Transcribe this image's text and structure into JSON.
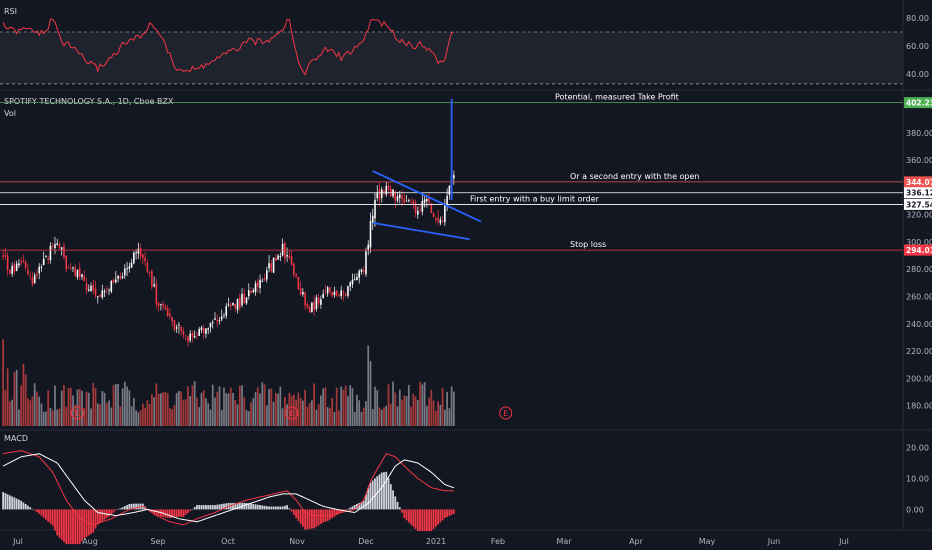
{
  "chart_data": {
    "type": "candlestick",
    "title": "SPOTIFY TECHNOLOGY S.A., 1D, Cboe BZX",
    "volume_label": "Vol",
    "months": [
      "Jul",
      "Aug",
      "Sep",
      "Oct",
      "Nov",
      "Dec",
      "2021",
      "Feb",
      "Mar",
      "Apr",
      "May",
      "Jun",
      "Jul"
    ],
    "price_axis": {
      "ylim": [
        165,
        410
      ],
      "ticks": [
        180,
        200,
        220,
        240,
        260,
        280,
        300,
        320,
        340,
        360,
        380
      ]
    },
    "price_tick_labels": [
      "180.00",
      "200.00",
      "220.00",
      "240.00",
      "260.00",
      "280.00",
      "300.00",
      "320.00",
      "340.00",
      "360.00",
      "380.00"
    ],
    "anchors": [
      [
        0,
        290
      ],
      [
        3,
        278
      ],
      [
        8,
        285
      ],
      [
        13,
        270
      ],
      [
        17,
        282
      ],
      [
        20,
        290
      ],
      [
        24,
        300
      ],
      [
        28,
        285
      ],
      [
        32,
        278
      ],
      [
        36,
        272
      ],
      [
        40,
        263
      ],
      [
        44,
        262
      ],
      [
        48,
        268
      ],
      [
        52,
        275
      ],
      [
        56,
        284
      ],
      [
        60,
        292
      ],
      [
        64,
        280
      ],
      [
        68,
        258
      ],
      [
        72,
        248
      ],
      [
        76,
        238
      ],
      [
        80,
        232
      ],
      [
        84,
        228
      ],
      [
        88,
        235
      ],
      [
        92,
        240
      ],
      [
        96,
        246
      ],
      [
        100,
        251
      ],
      [
        104,
        255
      ],
      [
        108,
        261
      ],
      [
        112,
        267
      ],
      [
        116,
        277
      ],
      [
        120,
        285
      ],
      [
        124,
        295
      ],
      [
        128,
        283
      ],
      [
        132,
        263
      ],
      [
        136,
        250
      ],
      [
        140,
        258
      ],
      [
        144,
        265
      ],
      [
        148,
        260
      ],
      [
        152,
        264
      ],
      [
        156,
        272
      ],
      [
        160,
        281
      ],
      [
        162,
        298
      ],
      [
        163,
        318
      ],
      [
        165,
        328
      ],
      [
        168,
        338
      ],
      [
        172,
        336
      ],
      [
        176,
        332
      ],
      [
        180,
        328
      ],
      [
        184,
        325
      ],
      [
        188,
        329
      ],
      [
        192,
        318
      ],
      [
        194,
        312
      ],
      [
        196,
        325
      ],
      [
        198,
        338
      ],
      [
        199,
        345
      ]
    ],
    "levels": [
      {
        "name": "take-profit",
        "value": 402.23,
        "label": "402.23",
        "text": "Potential, measured Take Profit",
        "color": "#4caf50"
      },
      {
        "name": "second-entry",
        "value": 344.07,
        "label": "344.07",
        "text": "Or a second entry with the open",
        "color": "#ef5350"
      },
      {
        "name": "first-entry",
        "value": 336.12,
        "label": "336.12",
        "text": "",
        "color": "#ffffff"
      },
      {
        "name": "first-entry-low",
        "value": 327.54,
        "label": "327.54",
        "text": "First entry with a buy limit order",
        "color": "#ffffff"
      },
      {
        "name": "stop-loss",
        "value": 294.01,
        "label": "294.01",
        "text": "Stop loss",
        "color": "#f23645"
      }
    ],
    "pattern_lines": [
      {
        "name": "flag-upper",
        "x": [
          164,
          212
        ],
        "y": [
          352,
          315
        ]
      },
      {
        "name": "flag-lower",
        "x": [
          164,
          207
        ],
        "y": [
          314,
          302
        ]
      },
      {
        "name": "flag-pole",
        "x": [
          199,
          199
        ],
        "y": [
          331,
          405
        ]
      }
    ],
    "earnings_markers": [
      {
        "label": "E",
        "x": 33
      },
      {
        "label": "E",
        "x": 128
      },
      {
        "label": "E",
        "x": 223
      }
    ],
    "rsi": {
      "label": "RSI",
      "ylim": [
        30,
        90
      ],
      "ticks": [
        40,
        60,
        80
      ],
      "tick_labels": [
        "40.00",
        "60.00",
        "80.00"
      ],
      "band": [
        33,
        70
      ],
      "anchors": [
        [
          0,
          75
        ],
        [
          5,
          70
        ],
        [
          12,
          72
        ],
        [
          18,
          68
        ],
        [
          22,
          80
        ],
        [
          26,
          63
        ],
        [
          32,
          58
        ],
        [
          38,
          48
        ],
        [
          42,
          44
        ],
        [
          48,
          52
        ],
        [
          54,
          62
        ],
        [
          60,
          66
        ],
        [
          66,
          76
        ],
        [
          70,
          68
        ],
        [
          76,
          45
        ],
        [
          82,
          42
        ],
        [
          88,
          45
        ],
        [
          94,
          50
        ],
        [
          100,
          55
        ],
        [
          106,
          60
        ],
        [
          110,
          64
        ],
        [
          116,
          62
        ],
        [
          120,
          68
        ],
        [
          124,
          73
        ],
        [
          127,
          80
        ],
        [
          130,
          55
        ],
        [
          132,
          44
        ],
        [
          134,
          42
        ],
        [
          138,
          50
        ],
        [
          144,
          58
        ],
        [
          150,
          52
        ],
        [
          156,
          58
        ],
        [
          160,
          64
        ],
        [
          163,
          78
        ],
        [
          166,
          79
        ],
        [
          170,
          74
        ],
        [
          174,
          67
        ],
        [
          178,
          63
        ],
        [
          182,
          60
        ],
        [
          186,
          62
        ],
        [
          190,
          55
        ],
        [
          194,
          48
        ],
        [
          196,
          50
        ],
        [
          198,
          64
        ],
        [
          199,
          71
        ],
        [
          200,
          68
        ]
      ]
    },
    "macd": {
      "label": "MACD",
      "ylim": [
        -6,
        25
      ],
      "ticks": [
        0,
        10,
        20
      ],
      "tick_labels": [
        "0.00",
        "10.00",
        "20.00"
      ],
      "macd_anchors": [
        [
          0,
          18
        ],
        [
          8,
          19
        ],
        [
          16,
          17
        ],
        [
          22,
          12
        ],
        [
          28,
          3
        ],
        [
          34,
          -3
        ],
        [
          40,
          -5
        ],
        [
          48,
          -3
        ],
        [
          56,
          0
        ],
        [
          62,
          1
        ],
        [
          68,
          -2
        ],
        [
          74,
          -4
        ],
        [
          80,
          -5
        ],
        [
          86,
          -3
        ],
        [
          94,
          -1
        ],
        [
          100,
          1
        ],
        [
          108,
          3
        ],
        [
          114,
          4
        ],
        [
          120,
          5
        ],
        [
          126,
          6
        ],
        [
          130,
          3
        ],
        [
          134,
          -1
        ],
        [
          138,
          -2
        ],
        [
          144,
          -2
        ],
        [
          150,
          -1
        ],
        [
          156,
          0
        ],
        [
          160,
          3
        ],
        [
          163,
          9
        ],
        [
          166,
          13
        ],
        [
          170,
          18
        ],
        [
          174,
          17
        ],
        [
          178,
          14
        ],
        [
          184,
          10
        ],
        [
          190,
          7
        ],
        [
          196,
          6
        ],
        [
          200,
          6
        ]
      ],
      "signal_anchors": [
        [
          0,
          14
        ],
        [
          8,
          17
        ],
        [
          16,
          18
        ],
        [
          24,
          15
        ],
        [
          30,
          9
        ],
        [
          36,
          3
        ],
        [
          42,
          -1
        ],
        [
          50,
          -2
        ],
        [
          58,
          -1
        ],
        [
          64,
          0
        ],
        [
          70,
          -1
        ],
        [
          78,
          -3
        ],
        [
          86,
          -4
        ],
        [
          94,
          -2
        ],
        [
          102,
          0
        ],
        [
          110,
          2
        ],
        [
          118,
          4
        ],
        [
          124,
          5
        ],
        [
          130,
          5
        ],
        [
          136,
          3
        ],
        [
          142,
          1
        ],
        [
          148,
          0
        ],
        [
          156,
          -1
        ],
        [
          162,
          2
        ],
        [
          168,
          7
        ],
        [
          174,
          14
        ],
        [
          178,
          16
        ],
        [
          184,
          15
        ],
        [
          190,
          12
        ],
        [
          196,
          8
        ],
        [
          200,
          7
        ]
      ]
    },
    "series_colors": {
      "up": "#ffffff",
      "down": "#f23645",
      "vol_up": "#787b86",
      "vol_down": "#a63a3a",
      "hist_up": "#d1d4dc",
      "hist_down": "#f23645",
      "rsi": "#f23645",
      "macd": "#f23645",
      "signal": "#ffffff",
      "pattern": "#2962ff"
    },
    "grid": false
  }
}
